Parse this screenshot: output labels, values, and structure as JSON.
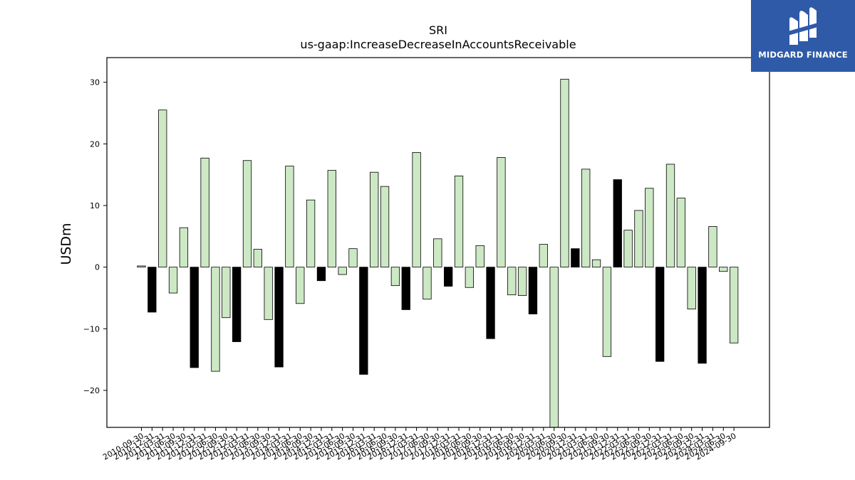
{
  "logo": {
    "text": "MIDGARD FINANCE",
    "bg": "#2f5aa8"
  },
  "chart_data": {
    "type": "bar",
    "title": "SRI",
    "subtitle": "us-gaap:IncreaseDecreaseInAccountsReceivable",
    "ylabel": "USDm",
    "xlabel": "",
    "ylim": [
      -26,
      34
    ],
    "yticks": [
      -20,
      -10,
      0,
      10,
      20,
      30
    ],
    "colors": {
      "q123": "#cce8c4",
      "q4": "#000000"
    },
    "categories": [
      "2010-09-30",
      "2010-12-31",
      "2011-03-31",
      "2011-06-30",
      "2011-09-30",
      "2011-12-31",
      "2012-03-31",
      "2012-06-30",
      "2012-09-30",
      "2012-12-31",
      "2013-03-31",
      "2013-06-30",
      "2013-09-30",
      "2013-12-31",
      "2014-03-31",
      "2014-06-30",
      "2014-09-30",
      "2014-12-31",
      "2015-03-31",
      "2015-06-30",
      "2015-09-30",
      "2015-12-31",
      "2016-03-31",
      "2016-06-30",
      "2016-09-30",
      "2016-12-31",
      "2017-03-31",
      "2017-06-30",
      "2017-09-30",
      "2017-12-31",
      "2018-03-31",
      "2018-06-30",
      "2018-09-30",
      "2018-12-31",
      "2019-03-31",
      "2019-06-30",
      "2019-09-30",
      "2019-12-31",
      "2020-03-31",
      "2020-06-30",
      "2020-09-30",
      "2020-12-31",
      "2021-03-31",
      "2021-06-30",
      "2021-09-30",
      "2021-12-31",
      "2022-03-31",
      "2022-06-30",
      "2022-09-30",
      "2022-12-31",
      "2023-03-31",
      "2023-06-30",
      "2023-09-30",
      "2023-12-31",
      "2024-03-31",
      "2024-06-30",
      "2024-09-30"
    ],
    "values": [
      0.2,
      -7.3,
      25.5,
      -4.2,
      6.4,
      -16.3,
      17.7,
      -16.9,
      -8.2,
      -12.1,
      17.3,
      2.9,
      -8.5,
      -16.2,
      16.4,
      -5.9,
      10.9,
      -2.2,
      15.7,
      -1.2,
      3.0,
      -17.4,
      15.4,
      13.1,
      -3.0,
      -6.9,
      18.6,
      -5.2,
      4.6,
      -3.1,
      14.8,
      -3.3,
      3.5,
      -11.6,
      17.8,
      -4.5,
      -4.6,
      -7.6,
      3.7,
      -26.0,
      30.5,
      3.0,
      15.9,
      1.2,
      -14.5,
      14.2,
      6.0,
      9.2,
      12.8,
      -15.3,
      16.7,
      11.2,
      -6.8,
      -15.6,
      6.6,
      -0.7,
      -12.3
    ]
  }
}
